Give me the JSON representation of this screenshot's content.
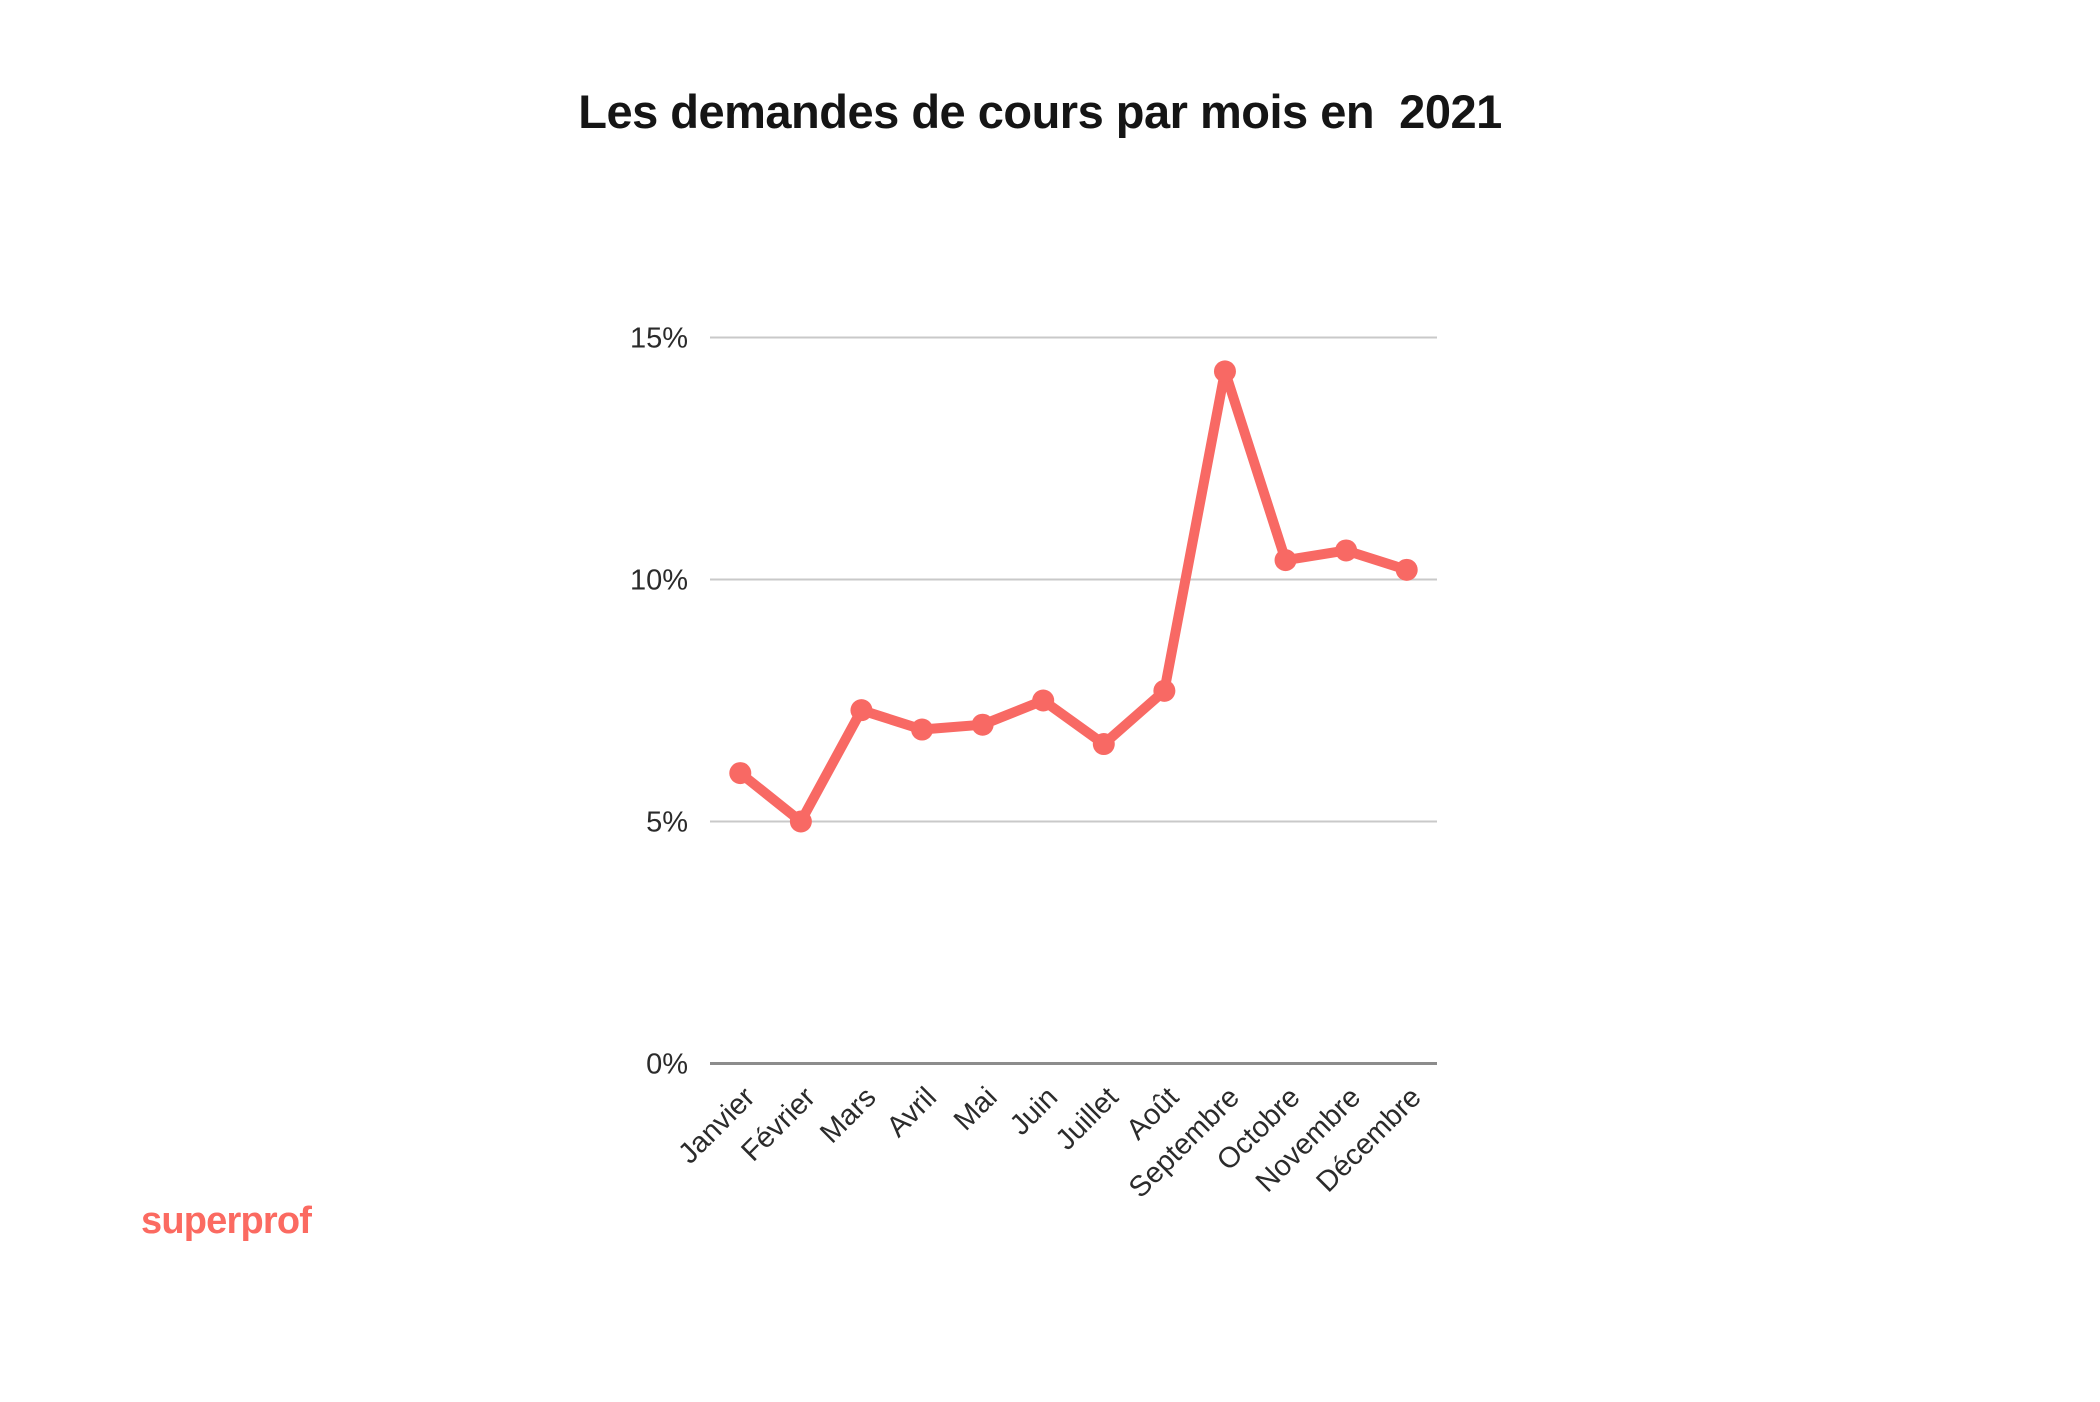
{
  "page": {
    "title": "Les demandes de cours par mois en  2021",
    "brand": "superprof"
  },
  "colors": {
    "accent": "#F86964",
    "logo": "#FB6A61",
    "gridline": "#C9C9C9",
    "axis_line": "#8C8C8C",
    "title_text": "#151515",
    "axis_text": "#2B2B2B"
  },
  "chart_data": {
    "type": "line",
    "title": "Les demandes de cours par mois en  2021",
    "categories": [
      "Janvier",
      "Février",
      "Mars",
      "Avril",
      "Mai",
      "Juin",
      "Juillet",
      "Août",
      "Septembre",
      "Octobre",
      "Novembre",
      "Décembre"
    ],
    "values": [
      6.0,
      5.0,
      7.3,
      6.9,
      7.0,
      7.5,
      6.6,
      7.7,
      14.3,
      10.4,
      10.6,
      10.2
    ],
    "unit": "%",
    "xlabel": "",
    "ylabel": "",
    "yticks": [
      0,
      5,
      10,
      15
    ],
    "ytick_labels": [
      "0%",
      "5%",
      "10%",
      "15%"
    ],
    "ylim": [
      0,
      15
    ],
    "grid": true,
    "legend": false,
    "series_name": "Demandes de cours",
    "series_color": "#F86964",
    "x_labels_rotation_deg": -45
  }
}
